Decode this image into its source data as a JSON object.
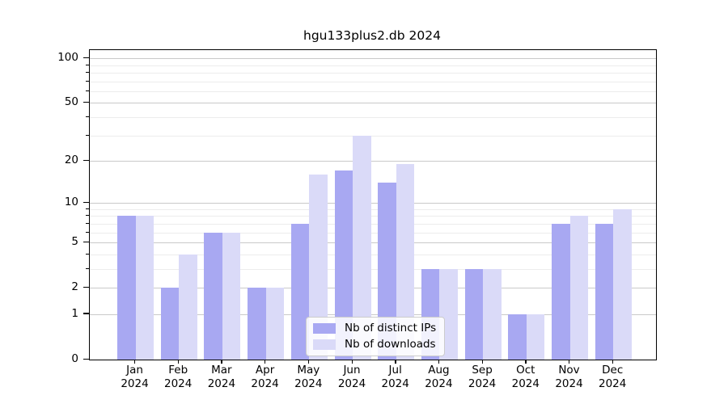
{
  "title": "hgu133plus2.db 2024",
  "colors": {
    "ips_bar": "#a8a8f2",
    "downloads_bar": "#dadaf8",
    "grid_major": "#c9c9c9",
    "grid_minor": "#ececec",
    "axis": "#000000"
  },
  "chart_data": {
    "type": "bar",
    "title": "hgu133plus2.db 2024",
    "scale": "log1p",
    "categories": [
      "Jan",
      "Feb",
      "Mar",
      "Apr",
      "May",
      "Jun",
      "Jul",
      "Aug",
      "Sep",
      "Oct",
      "Nov",
      "Dec"
    ],
    "year": "2024",
    "series": [
      {
        "name": "Nb of distinct IPs",
        "color": "#a8a8f2",
        "values": [
          8,
          2,
          6,
          2,
          7,
          17,
          14,
          3,
          3,
          1,
          7,
          7
        ]
      },
      {
        "name": "Nb of downloads",
        "color": "#dadaf8",
        "values": [
          8,
          4,
          6,
          2,
          16,
          30,
          19,
          3,
          3,
          1,
          8,
          9
        ]
      }
    ],
    "xlabel": "",
    "ylabel": "",
    "y_ticks": [
      0,
      1,
      2,
      5,
      10,
      20,
      50,
      100
    ],
    "y_minor_ticks": [
      3,
      4,
      6,
      7,
      8,
      9,
      30,
      40,
      60,
      70,
      80,
      90
    ],
    "ylim": [
      0,
      113.5
    ],
    "grid": true,
    "legend_position": "bottom-center"
  }
}
